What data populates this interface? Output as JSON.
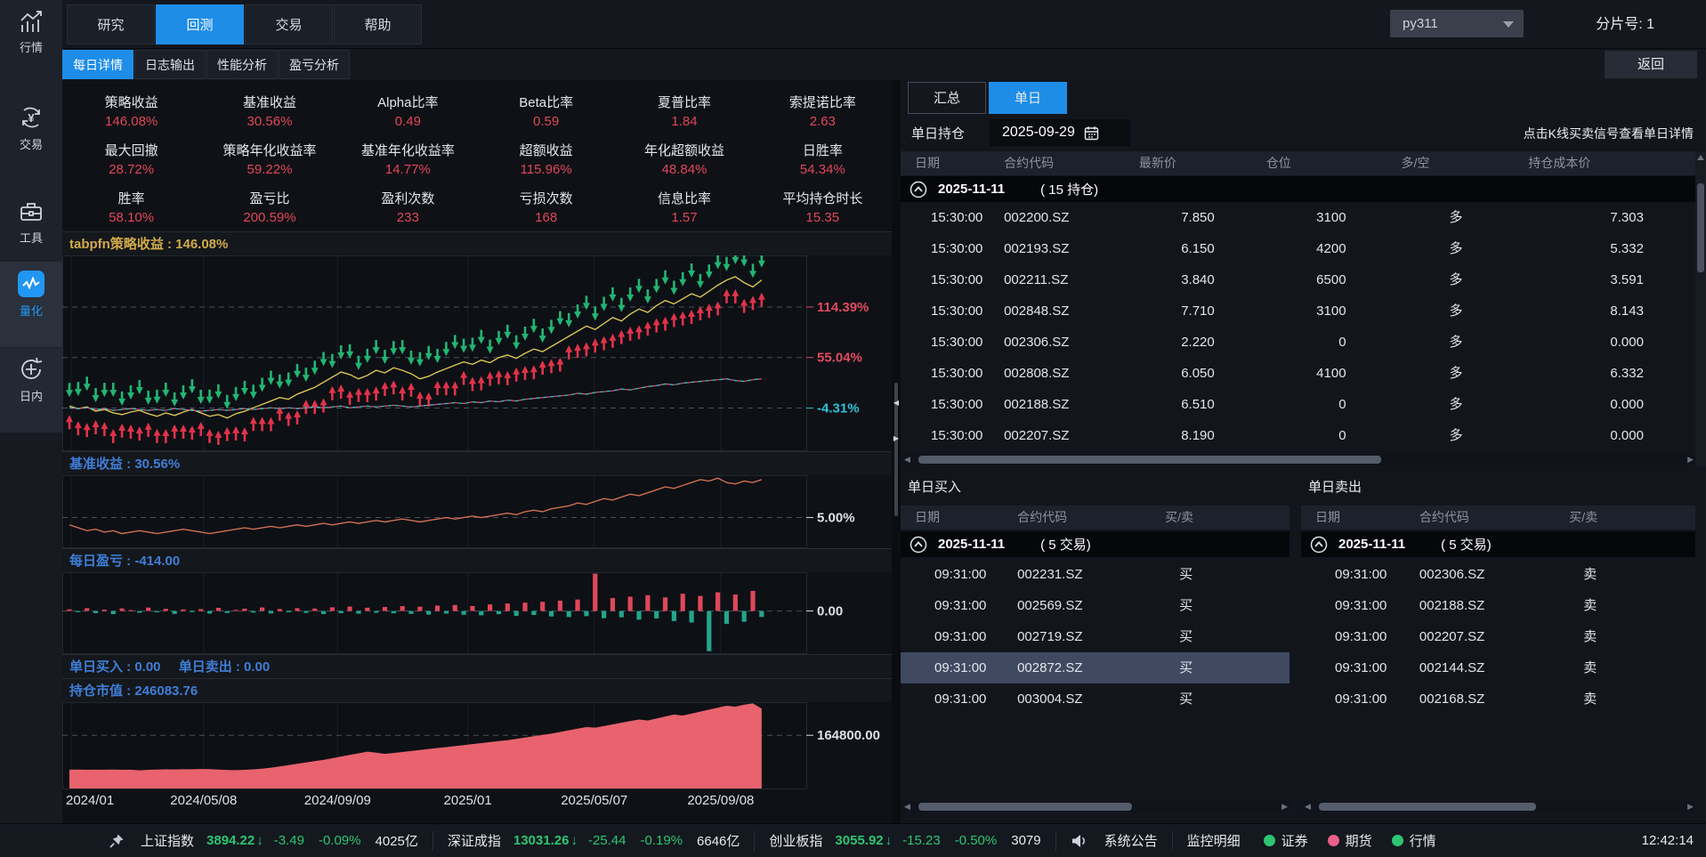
{
  "sidebar": {
    "items": [
      {
        "key": "market",
        "label": "行情",
        "icon": "market-chart-icon",
        "active": false
      },
      {
        "key": "trade",
        "label": "交易",
        "icon": "trade-yen-icon",
        "active": false
      },
      {
        "key": "tools",
        "label": "工具",
        "icon": "toolbox-icon",
        "active": false
      },
      {
        "key": "quant",
        "label": "量化",
        "icon": "quant-wave-icon",
        "active": true
      },
      {
        "key": "intraday",
        "label": "日内",
        "icon": "intraday-icon",
        "active": false
      }
    ]
  },
  "topnav": {
    "tabs": [
      {
        "key": "research",
        "label": "研究",
        "active": false
      },
      {
        "key": "backtest",
        "label": "回测",
        "active": true
      },
      {
        "key": "trade",
        "label": "交易",
        "active": false
      },
      {
        "key": "help",
        "label": "帮助",
        "active": false
      }
    ],
    "env_select": "py311",
    "shard_label": "分片号: 1"
  },
  "subtabs": {
    "tabs": [
      {
        "key": "daily-detail",
        "label": "每日详情",
        "active": true
      },
      {
        "key": "log-output",
        "label": "日志输出",
        "active": false
      },
      {
        "key": "performance",
        "label": "性能分析",
        "active": false
      },
      {
        "key": "pnl-analysis",
        "label": "盈亏分析",
        "active": false
      }
    ],
    "back_label": "返回"
  },
  "stats": {
    "items": [
      {
        "label": "策略收益",
        "value": "146.08%"
      },
      {
        "label": "基准收益",
        "value": "30.56%"
      },
      {
        "label": "Alpha比率",
        "value": "0.49"
      },
      {
        "label": "Beta比率",
        "value": "0.59"
      },
      {
        "label": "夏普比率",
        "value": "1.84"
      },
      {
        "label": "索提诺比率",
        "value": "2.63"
      },
      {
        "label": "最大回撤",
        "value": "28.72%"
      },
      {
        "label": "策略年化收益率",
        "value": "59.22%"
      },
      {
        "label": "基准年化收益率",
        "value": "14.77%"
      },
      {
        "label": "超额收益",
        "value": "115.96%"
      },
      {
        "label": "年化超额收益",
        "value": "48.84%"
      },
      {
        "label": "日胜率",
        "value": "54.34%"
      },
      {
        "label": "胜率",
        "value": "58.10%"
      },
      {
        "label": "盈亏比",
        "value": "200.59%"
      },
      {
        "label": "盈利次数",
        "value": "233"
      },
      {
        "label": "亏损次数",
        "value": "168"
      },
      {
        "label": "信息比率",
        "value": "1.57"
      },
      {
        "label": "平均持仓时长",
        "value": "15.35"
      }
    ]
  },
  "chart_data": {
    "x_ticks": {
      "labels": [
        "2024/01",
        "2024/05/08",
        "2024/09/09",
        "2025/01",
        "2025/05/07",
        "2025/09/08"
      ],
      "positions": [
        0.012,
        0.19,
        0.37,
        0.545,
        0.715,
        0.885
      ]
    },
    "panes": [
      {
        "type": "line",
        "title": "tabpfn策略收益 : 146.08%",
        "title_color": "#d2ab4a",
        "ylim": [
          -55,
          175
        ],
        "grid_y": [
          {
            "value": 114.39,
            "label": "114.39%",
            "color": "#e14b5f"
          },
          {
            "value": 55.04,
            "label": "55.04%",
            "color": "#e14b5f"
          },
          {
            "value": -4.31,
            "label": "-4.31%",
            "color": "#2bc2d6"
          }
        ],
        "signals": {
          "up_color": "#e0334a",
          "down_color": "#22b573"
        },
        "series": [
          {
            "name": "策略收益",
            "color": "#d9c355",
            "values": [
              -2,
              -5,
              -3,
              -8,
              -6,
              -10,
              -12,
              -9,
              -7,
              -11,
              -14,
              -10,
              -13,
              -9,
              -6,
              -10,
              -14,
              -12,
              -16,
              -11,
              -8,
              -4,
              0,
              4,
              8,
              6,
              12,
              16,
              20,
              26,
              32,
              38,
              35,
              30,
              34,
              40,
              37,
              43,
              40,
              36,
              30,
              33,
              38,
              42,
              46,
              50,
              47,
              52,
              49,
              55,
              58,
              54,
              60,
              65,
              62,
              68,
              74,
              80,
              86,
              92,
              88,
              95,
              102,
              98,
              106,
              112,
              108,
              116,
              122,
              118,
              124,
              130,
              126,
              133,
              140,
              146,
              150,
              143,
              138,
              146
            ]
          },
          {
            "name": "基准",
            "style": "dual-dash",
            "colors": [
              "#d94f5c",
              "#35c2d8"
            ],
            "values": [
              -4,
              -5,
              -4,
              -6,
              -5,
              -7,
              -6,
              -5,
              -6,
              -7,
              -6,
              -7,
              -5,
              -6,
              -7,
              -8,
              -7,
              -6,
              -7,
              -6,
              -5,
              -6,
              -5,
              -4,
              -5,
              -4,
              -5,
              -4,
              -3,
              -4,
              -3,
              -2,
              -4,
              -3,
              -2,
              -3,
              -2,
              -1,
              -2,
              -3,
              -2,
              -1,
              0,
              1,
              2,
              1,
              3,
              2,
              4,
              3,
              5,
              4,
              6,
              7,
              8,
              9,
              10,
              11,
              13,
              12,
              14,
              15,
              16,
              18,
              17,
              19,
              21,
              22,
              24,
              23,
              25,
              26,
              27,
              28,
              29,
              30,
              28,
              27,
              29,
              30
            ]
          }
        ]
      },
      {
        "type": "line",
        "title": "基准收益 : 30.56%",
        "title_color": "#3f7ed8",
        "ylim": [
          -16,
          34
        ],
        "grid_y": [
          {
            "value": 5,
            "label": "5.00%",
            "color": "#dde1e6"
          }
        ],
        "series": [
          {
            "name": "基准收益",
            "color": "#cf6f52",
            "values": [
              0,
              -2,
              -4,
              -3,
              -5,
              -4,
              -6,
              -5,
              -4,
              -5,
              -6,
              -5,
              -4,
              -3,
              -4,
              -5,
              -6,
              -5,
              -4,
              -3,
              -2,
              -3,
              -2,
              -1,
              -2,
              -1,
              0,
              -1,
              0,
              1,
              0,
              1,
              2,
              1,
              2,
              3,
              2,
              3,
              4,
              3,
              2,
              3,
              4,
              5,
              4,
              5,
              6,
              5,
              6,
              7,
              8,
              7,
              9,
              10,
              9,
              11,
              12,
              13,
              15,
              14,
              16,
              18,
              17,
              19,
              21,
              20,
              22,
              24,
              26,
              25,
              27,
              29,
              31,
              30,
              32,
              29,
              28,
              30,
              29,
              31
            ]
          }
        ]
      },
      {
        "type": "bar",
        "title": "每日盈亏 : -414.00",
        "title_color": "#3f7ed8",
        "ylim": [
          -3000,
          2700
        ],
        "grid_y": [
          {
            "value": 0,
            "label": "0.00",
            "color": "#dde1e6"
          }
        ],
        "pos_color": "#e0475a",
        "neg_color": "#23a58c",
        "values": [
          120,
          -80,
          200,
          -150,
          90,
          -220,
          180,
          60,
          -120,
          240,
          -90,
          150,
          -200,
          110,
          -60,
          130,
          -180,
          220,
          -140,
          80,
          160,
          -110,
          250,
          -170,
          140,
          -90,
          200,
          -130,
          170,
          -210,
          260,
          -150,
          310,
          -190,
          230,
          -120,
          280,
          -160,
          340,
          -200,
          300,
          -250,
          380,
          -180,
          420,
          -260,
          350,
          -300,
          460,
          -220,
          520,
          -340,
          580,
          -280,
          640,
          -380,
          720,
          -420,
          800,
          -360,
          2600,
          -500,
          900,
          -440,
          1000,
          -600,
          1100,
          -520,
          950,
          -700,
          1200,
          -800,
          1050,
          -2800,
          1300,
          -900,
          1150,
          -750,
          1400,
          -414
        ]
      },
      {
        "type": "labels",
        "labels": [
          "单日买入 : 0.00",
          "单日卖出 : 0.00"
        ],
        "title_color": "#3f7ed8"
      },
      {
        "type": "area",
        "title": "持仓市值 : 246083.76",
        "title_color": "#3f7ed8",
        "ylim": [
          0,
          265800
        ],
        "grid_y": [
          {
            "value": 164800,
            "label": "164800.00",
            "color": "#dde1e6"
          }
        ],
        "color": "#e8636e",
        "values": [
          60000,
          60200,
          59800,
          60100,
          59900,
          60300,
          59700,
          60000,
          58000,
          59500,
          60500,
          61000,
          60800,
          61500,
          61200,
          62000,
          61800,
          60500,
          59000,
          58500,
          59500,
          61000,
          63000,
          66000,
          70000,
          74000,
          78000,
          82000,
          86000,
          90000,
          95000,
          100000,
          105000,
          110000,
          115000,
          112000,
          108000,
          111000,
          114000,
          117000,
          120000,
          123000,
          126000,
          129000,
          132000,
          135000,
          138000,
          141000,
          144000,
          147000,
          150000,
          154000,
          158000,
          162000,
          166000,
          170000,
          175000,
          180000,
          185000,
          190000,
          188000,
          193000,
          198000,
          203000,
          208000,
          213000,
          210000,
          216000,
          222000,
          228000,
          225000,
          231000,
          237000,
          243000,
          249000,
          255000,
          252000,
          258000,
          262000,
          246084
        ]
      }
    ]
  },
  "right_panel": {
    "tabs": [
      {
        "key": "summary",
        "label": "汇总",
        "active": false
      },
      {
        "key": "single-day",
        "label": "单日",
        "active": true
      }
    ],
    "position_label": "单日持仓",
    "date_value": "2025-09-29",
    "hint": "点击K线买卖信号查看单日详情",
    "holdings": {
      "columns": [
        "日期",
        "合约代码",
        "最新价",
        "仓位",
        "多/空",
        "持仓成本价"
      ],
      "group": {
        "date": "2025-11-11",
        "count_label": "( 15 持仓)"
      },
      "rows": [
        [
          "15:30:00",
          "002200.SZ",
          "7.850",
          "3100",
          "多",
          "7.303"
        ],
        [
          "15:30:00",
          "002193.SZ",
          "6.150",
          "4200",
          "多",
          "5.332"
        ],
        [
          "15:30:00",
          "002211.SZ",
          "3.840",
          "6500",
          "多",
          "3.591"
        ],
        [
          "15:30:00",
          "002848.SZ",
          "7.710",
          "3100",
          "多",
          "8.143"
        ],
        [
          "15:30:00",
          "002306.SZ",
          "2.220",
          "0",
          "多",
          "0.000"
        ],
        [
          "15:30:00",
          "002808.SZ",
          "6.050",
          "4100",
          "多",
          "6.332"
        ],
        [
          "15:30:00",
          "002188.SZ",
          "6.510",
          "0",
          "多",
          "0.000"
        ],
        [
          "15:30:00",
          "002207.SZ",
          "8.190",
          "0",
          "多",
          "0.000"
        ]
      ]
    },
    "buys": {
      "title": "单日买入",
      "columns": [
        "日期",
        "合约代码",
        "买/卖"
      ],
      "group": {
        "date": "2025-11-11",
        "count_label": "( 5 交易)"
      },
      "selected_index": 3,
      "rows": [
        [
          "09:31:00",
          "002231.SZ",
          "买"
        ],
        [
          "09:31:00",
          "002569.SZ",
          "买"
        ],
        [
          "09:31:00",
          "002719.SZ",
          "买"
        ],
        [
          "09:31:00",
          "002872.SZ",
          "买"
        ],
        [
          "09:31:00",
          "003004.SZ",
          "买"
        ]
      ]
    },
    "sells": {
      "title": "单日卖出",
      "columns": [
        "日期",
        "合约代码",
        "买/卖"
      ],
      "group": {
        "date": "2025-11-11",
        "count_label": "( 5 交易)"
      },
      "selected_index": -1,
      "rows": [
        [
          "09:31:00",
          "002306.SZ",
          "卖"
        ],
        [
          "09:31:00",
          "002188.SZ",
          "卖"
        ],
        [
          "09:31:00",
          "002207.SZ",
          "卖"
        ],
        [
          "09:31:00",
          "002144.SZ",
          "卖"
        ],
        [
          "09:31:00",
          "002168.SZ",
          "卖"
        ]
      ]
    }
  },
  "statusbar": {
    "down_color": "#2dc572",
    "indices": [
      {
        "name": "上证指数",
        "value": "3894.22",
        "arrow": "↓",
        "change": "-3.49",
        "pct": "-0.09%",
        "amount": "4025亿"
      },
      {
        "name": "深证成指",
        "value": "13031.26",
        "arrow": "↓",
        "change": "-25.44",
        "pct": "-0.19%",
        "amount": "6646亿"
      },
      {
        "name": "创业板指",
        "value": "3055.92",
        "arrow": "↓",
        "change": "-15.23",
        "pct": "-0.50%",
        "amount": "3079"
      }
    ],
    "announcement": "系统公告",
    "monitor": "监控明细",
    "feeds": [
      {
        "label": "证券",
        "color": "#2dc572"
      },
      {
        "label": "期货",
        "color": "#ea5f8c"
      },
      {
        "label": "行情",
        "color": "#2dc572"
      }
    ],
    "time": "12:42:14"
  }
}
